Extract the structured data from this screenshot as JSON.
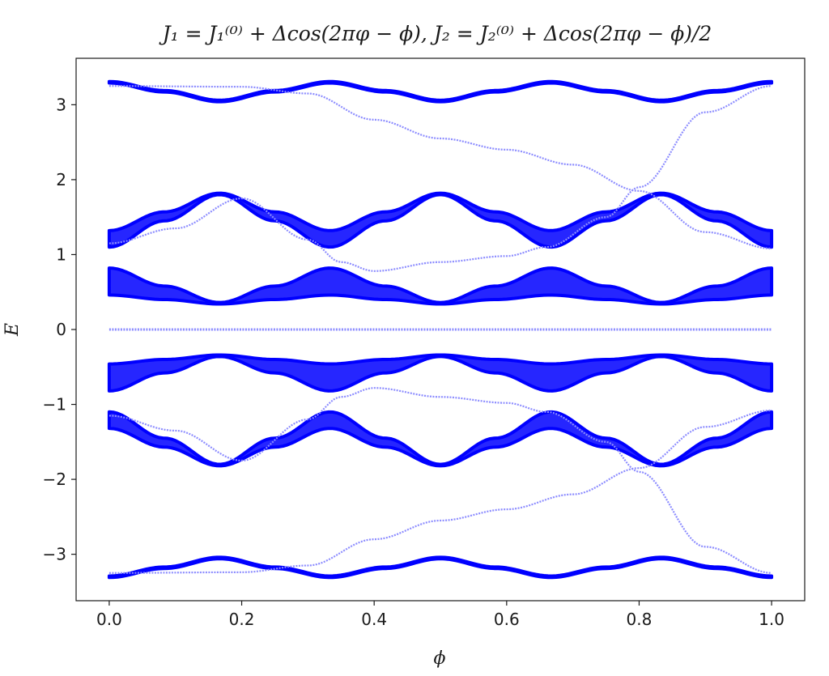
{
  "chart_data": {
    "type": "scatter",
    "title": "J₁ = J₁⁽⁰⁾ + Δcos(2πφ − ϕ), J₂ = J₂⁽⁰⁾ + Δcos(2πφ − ϕ)/2",
    "xlabel": "ϕ",
    "ylabel": "E",
    "xlim": [
      -0.05,
      1.05
    ],
    "ylim": [
      -3.62,
      3.62
    ],
    "xticks": [
      0.0,
      0.2,
      0.4,
      0.6,
      0.8,
      1.0
    ],
    "xtick_labels": [
      "0.0",
      "0.2",
      "0.4",
      "0.6",
      "0.8",
      "1.0"
    ],
    "yticks": [
      -3,
      -2,
      -1,
      0,
      1,
      2,
      3
    ],
    "ytick_labels": [
      "−3",
      "−2",
      "−1",
      "0",
      "1",
      "2",
      "3"
    ],
    "grid": false,
    "legend": false,
    "colors": {
      "bulk": "#0000ff",
      "edge": "#8c8cff",
      "axes": "#1a1a1a"
    },
    "bulk_bands": [
      {
        "name": "band-top-outer",
        "x": [
          0.0,
          0.0833,
          0.1667,
          0.25,
          0.3333,
          0.4167,
          0.5,
          0.5833,
          0.6667,
          0.75,
          0.8333,
          0.9167,
          1.0
        ],
        "lower": [
          3.29,
          3.17,
          3.04,
          3.17,
          3.29,
          3.17,
          3.04,
          3.17,
          3.29,
          3.17,
          3.04,
          3.17,
          3.29
        ],
        "upper": [
          3.31,
          3.19,
          3.06,
          3.19,
          3.31,
          3.19,
          3.06,
          3.19,
          3.31,
          3.19,
          3.06,
          3.19,
          3.31
        ]
      },
      {
        "name": "band-top-middle",
        "x": [
          0.0,
          0.0833,
          0.1667,
          0.25,
          0.3333,
          0.4167,
          0.5,
          0.5833,
          0.6667,
          0.75,
          0.8333,
          0.9167,
          1.0
        ],
        "lower": [
          1.1,
          1.45,
          1.8,
          1.45,
          1.1,
          1.45,
          1.8,
          1.45,
          1.1,
          1.45,
          1.8,
          1.45,
          1.1
        ],
        "upper": [
          1.32,
          1.57,
          1.82,
          1.57,
          1.32,
          1.57,
          1.82,
          1.57,
          1.32,
          1.57,
          1.82,
          1.57,
          1.32
        ]
      },
      {
        "name": "band-top-inner",
        "x": [
          0.0,
          0.0833,
          0.1667,
          0.25,
          0.3333,
          0.4167,
          0.5,
          0.5833,
          0.6667,
          0.75,
          0.8333,
          0.9167,
          1.0
        ],
        "lower": [
          0.46,
          0.4,
          0.34,
          0.4,
          0.46,
          0.4,
          0.34,
          0.4,
          0.46,
          0.4,
          0.34,
          0.4,
          0.46
        ],
        "upper": [
          0.82,
          0.58,
          0.36,
          0.58,
          0.82,
          0.58,
          0.36,
          0.58,
          0.82,
          0.58,
          0.36,
          0.58,
          0.82
        ]
      },
      {
        "name": "band-bottom-inner",
        "x": [
          0.0,
          0.0833,
          0.1667,
          0.25,
          0.3333,
          0.4167,
          0.5,
          0.5833,
          0.6667,
          0.75,
          0.8333,
          0.9167,
          1.0
        ],
        "lower": [
          -0.82,
          -0.58,
          -0.36,
          -0.58,
          -0.82,
          -0.58,
          -0.36,
          -0.58,
          -0.82,
          -0.58,
          -0.36,
          -0.58,
          -0.82
        ],
        "upper": [
          -0.46,
          -0.4,
          -0.34,
          -0.4,
          -0.46,
          -0.4,
          -0.34,
          -0.4,
          -0.46,
          -0.4,
          -0.34,
          -0.4,
          -0.46
        ]
      },
      {
        "name": "band-bottom-middle",
        "x": [
          0.0,
          0.0833,
          0.1667,
          0.25,
          0.3333,
          0.4167,
          0.5,
          0.5833,
          0.6667,
          0.75,
          0.8333,
          0.9167,
          1.0
        ],
        "lower": [
          -1.32,
          -1.57,
          -1.82,
          -1.57,
          -1.32,
          -1.57,
          -1.82,
          -1.57,
          -1.32,
          -1.57,
          -1.82,
          -1.57,
          -1.32
        ],
        "upper": [
          -1.1,
          -1.45,
          -1.8,
          -1.45,
          -1.1,
          -1.45,
          -1.8,
          -1.45,
          -1.1,
          -1.45,
          -1.8,
          -1.45,
          -1.1
        ]
      },
      {
        "name": "band-bottom-outer",
        "x": [
          0.0,
          0.0833,
          0.1667,
          0.25,
          0.3333,
          0.4167,
          0.5,
          0.5833,
          0.6667,
          0.75,
          0.8333,
          0.9167,
          1.0
        ],
        "lower": [
          -3.31,
          -3.19,
          -3.06,
          -3.19,
          -3.31,
          -3.19,
          -3.06,
          -3.19,
          -3.31,
          -3.19,
          -3.06,
          -3.19,
          -3.31
        ],
        "upper": [
          -3.29,
          -3.17,
          -3.04,
          -3.17,
          -3.29,
          -3.17,
          -3.04,
          -3.17,
          -3.29,
          -3.17,
          -3.04,
          -3.17,
          -3.29
        ]
      }
    ],
    "zero_mode": {
      "x": [
        0.0,
        1.0
      ],
      "y": [
        0.0,
        0.0
      ]
    },
    "edge_states": [
      {
        "x": [
          0.0,
          0.2,
          0.3,
          0.4,
          0.5,
          0.6,
          0.7,
          0.8,
          0.9,
          1.0
        ],
        "y": [
          3.25,
          3.24,
          3.15,
          2.8,
          2.55,
          2.4,
          2.2,
          1.85,
          1.3,
          1.08
        ]
      },
      {
        "x": [
          0.0,
          0.1,
          0.2,
          0.3,
          0.35,
          0.4,
          0.5,
          0.6,
          0.66,
          0.75,
          0.8,
          0.9,
          1.0
        ],
        "y": [
          1.15,
          1.35,
          1.75,
          1.2,
          0.9,
          0.78,
          0.9,
          0.98,
          1.1,
          1.5,
          1.9,
          2.9,
          3.25
        ]
      },
      {
        "x": [
          0.0,
          0.1,
          0.2,
          0.3,
          0.35,
          0.4,
          0.5,
          0.6,
          0.66,
          0.75,
          0.8,
          0.9,
          1.0
        ],
        "y": [
          -1.15,
          -1.35,
          -1.75,
          -1.2,
          -0.9,
          -0.78,
          -0.9,
          -0.98,
          -1.1,
          -1.5,
          -1.9,
          -2.9,
          -3.25
        ]
      },
      {
        "x": [
          0.0,
          0.2,
          0.3,
          0.4,
          0.5,
          0.6,
          0.7,
          0.8,
          0.9,
          1.0
        ],
        "y": [
          -3.25,
          -3.24,
          -3.15,
          -2.8,
          -2.55,
          -2.4,
          -2.2,
          -1.85,
          -1.3,
          -1.08
        ]
      }
    ]
  }
}
